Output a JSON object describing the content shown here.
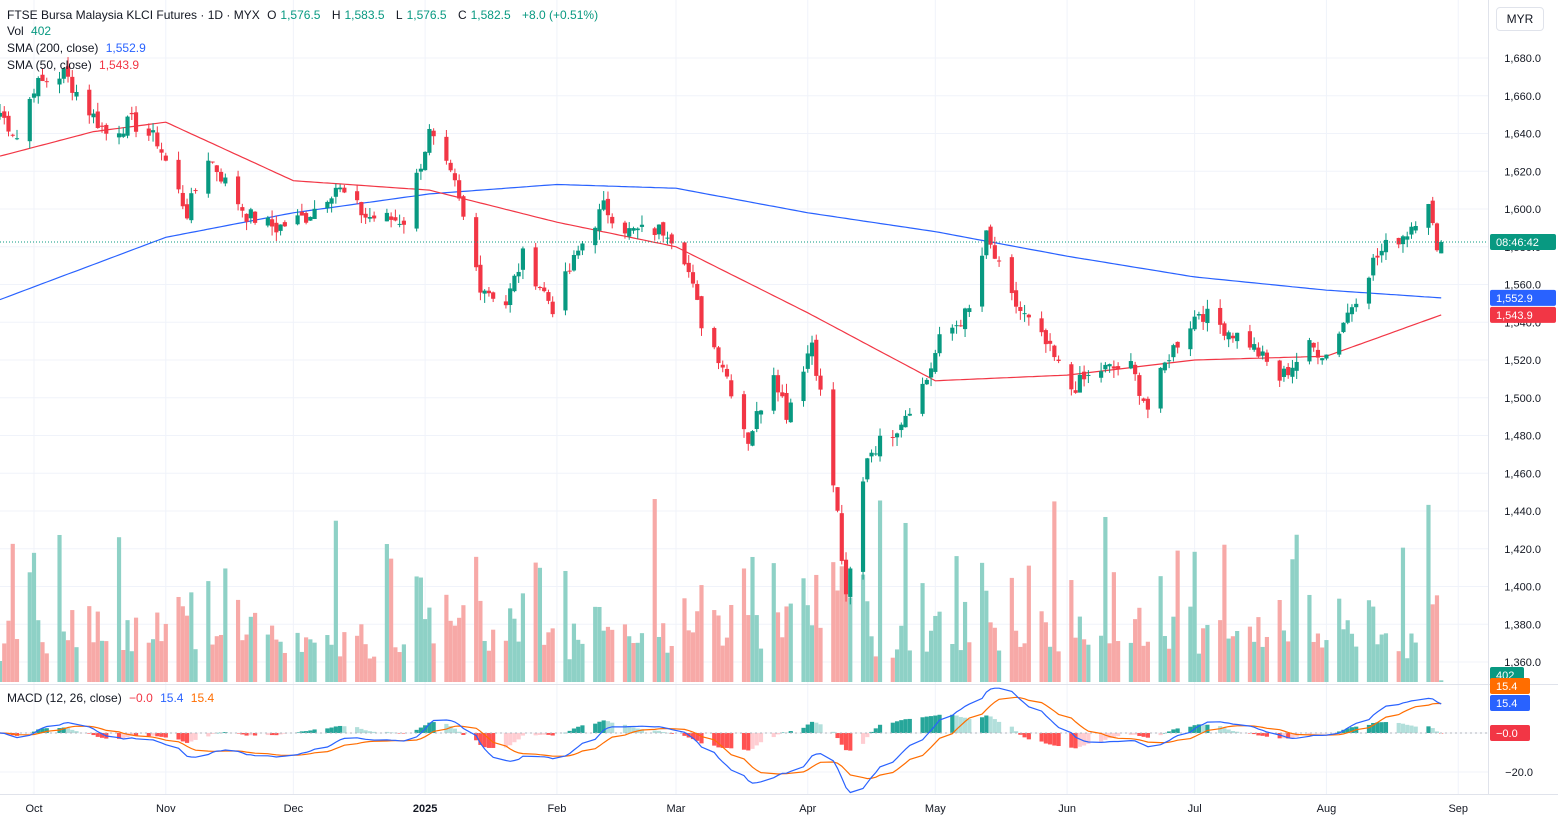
{
  "header": {
    "symbol": "FTSE Bursa Malaysia KLCI Futures · 1D · MYX",
    "open_label": "O",
    "open": "1,576.5",
    "high_label": "H",
    "high": "1,583.5",
    "low_label": "L",
    "low": "1,576.5",
    "close_label": "C",
    "close": "1,582.5",
    "change": "+8.0 (+0.51%)"
  },
  "indicators": {
    "vol_label": "Vol",
    "vol_value": "402",
    "sma200_label": "SMA (200, close)",
    "sma200_value": "1,552.9",
    "sma50_label": "SMA (50, close)",
    "sma50_value": "1,543.9",
    "macd_label": "MACD (12, 26, close)",
    "macd_hist": "−0.0",
    "macd_line": "15.4",
    "macd_signal": "15.4"
  },
  "currency_button": "MYR",
  "price_axis": {
    "ticks": [
      "1,680.0",
      "1,660.0",
      "1,640.0",
      "1,620.0",
      "1,600.0",
      "1,580.0",
      "1,560.0",
      "1,540.0",
      "1,520.0",
      "1,500.0",
      "1,480.0",
      "1,460.0",
      "1,440.0",
      "1,420.0",
      "1,400.0",
      "1,380.0",
      "1,360.0"
    ],
    "countdown_label": "08:46:42",
    "sma200_label": "1,552.9",
    "sma50_label": "1,543.9",
    "vol_label": "402"
  },
  "macd_axis": {
    "tick": "−20.0",
    "signal_label": "15.4",
    "macd_label": "15.4",
    "hist_label": "−0.0"
  },
  "time_axis": [
    "Oct",
    "Nov",
    "Dec",
    "2025",
    "Feb",
    "Mar",
    "Apr",
    "May",
    "Jun",
    "Jul",
    "Aug",
    "Sep"
  ],
  "colors": {
    "up": "#089981",
    "down": "#f23645",
    "sma200": "#2962ff",
    "sma50": "#f23645",
    "macd": "#2962ff",
    "signal": "#ff6d00",
    "vol_up": "#8ed1c6",
    "vol_down": "#f7a9a7",
    "grid": "#f0f3fa"
  },
  "chart_data": {
    "type": "candlestick",
    "title": "FTSE Bursa Malaysia KLCI Futures",
    "interval": "1D",
    "y_range": [
      1360,
      1690
    ],
    "x_range": [
      "2024-09-23",
      "2025-09-08"
    ],
    "grid": true,
    "anchors_close": [
      [
        "2024-09-23",
        1651
      ],
      [
        "2024-09-27",
        1638
      ],
      [
        "2024-10-01",
        1665
      ],
      [
        "2024-10-08",
        1672
      ],
      [
        "2024-10-14",
        1652
      ],
      [
        "2024-10-18",
        1640
      ],
      [
        "2024-10-24",
        1646
      ],
      [
        "2024-10-30",
        1636
      ],
      [
        "2024-11-06",
        1598
      ],
      [
        "2024-11-11",
        1628
      ],
      [
        "2024-11-20",
        1597
      ],
      [
        "2024-11-27",
        1590
      ],
      [
        "2024-12-04",
        1596
      ],
      [
        "2024-12-11",
        1612
      ],
      [
        "2024-12-18",
        1596
      ],
      [
        "2024-12-27",
        1594
      ],
      [
        "2025-01-02",
        1640
      ],
      [
        "2025-01-08",
        1612
      ],
      [
        "2025-01-14",
        1560
      ],
      [
        "2025-01-20",
        1550
      ],
      [
        "2025-01-24",
        1575
      ],
      [
        "2025-01-31",
        1548
      ],
      [
        "2025-02-07",
        1582
      ],
      [
        "2025-02-12",
        1601
      ],
      [
        "2025-02-18",
        1588
      ],
      [
        "2025-02-27",
        1589
      ],
      [
        "2025-03-03",
        1575
      ],
      [
        "2025-03-07",
        1540
      ],
      [
        "2025-03-12",
        1518
      ],
      [
        "2025-03-18",
        1478
      ],
      [
        "2025-03-24",
        1515
      ],
      [
        "2025-03-27",
        1492
      ],
      [
        "2025-04-02",
        1530
      ],
      [
        "2025-04-04",
        1502
      ],
      [
        "2025-04-08",
        1438
      ],
      [
        "2025-04-10",
        1392
      ],
      [
        "2025-04-15",
        1470
      ],
      [
        "2025-04-22",
        1485
      ],
      [
        "2025-04-29",
        1510
      ],
      [
        "2025-05-02",
        1530
      ],
      [
        "2025-05-09",
        1546
      ],
      [
        "2025-05-13",
        1585
      ],
      [
        "2025-05-19",
        1552
      ],
      [
        "2025-05-27",
        1528
      ],
      [
        "2025-06-02",
        1505
      ],
      [
        "2025-06-09",
        1515
      ],
      [
        "2025-06-16",
        1516
      ],
      [
        "2025-06-20",
        1494
      ],
      [
        "2025-06-25",
        1523
      ],
      [
        "2025-07-02",
        1546
      ],
      [
        "2025-07-08",
        1537
      ],
      [
        "2025-07-14",
        1529
      ],
      [
        "2025-07-21",
        1510
      ],
      [
        "2025-07-28",
        1527
      ],
      [
        "2025-08-01",
        1523
      ],
      [
        "2025-08-06",
        1545
      ],
      [
        "2025-08-12",
        1572
      ],
      [
        "2025-08-15",
        1580
      ],
      [
        "2025-08-20",
        1588
      ],
      [
        "2025-08-25",
        1606
      ],
      [
        "2025-08-27",
        1575
      ],
      [
        "2025-08-28",
        1582.5
      ]
    ],
    "sma200_anchors": [
      [
        "2024-09-23",
        1552
      ],
      [
        "2024-11-01",
        1585
      ],
      [
        "2024-12-01",
        1598
      ],
      [
        "2025-01-02",
        1608
      ],
      [
        "2025-02-01",
        1613
      ],
      [
        "2025-03-01",
        1611
      ],
      [
        "2025-04-01",
        1598
      ],
      [
        "2025-05-01",
        1588
      ],
      [
        "2025-06-01",
        1575
      ],
      [
        "2025-07-01",
        1564
      ],
      [
        "2025-08-01",
        1557
      ],
      [
        "2025-08-28",
        1552.9
      ]
    ],
    "sma50_anchors": [
      [
        "2024-09-23",
        1628
      ],
      [
        "2024-10-15",
        1641
      ],
      [
        "2024-11-01",
        1646
      ],
      [
        "2024-12-01",
        1615
      ],
      [
        "2025-01-02",
        1610
      ],
      [
        "2025-02-01",
        1593
      ],
      [
        "2025-03-01",
        1580
      ],
      [
        "2025-04-01",
        1545
      ],
      [
        "2025-05-01",
        1509
      ],
      [
        "2025-06-01",
        1512
      ],
      [
        "2025-07-01",
        1520
      ],
      [
        "2025-08-01",
        1522
      ],
      [
        "2025-08-28",
        1543.9
      ]
    ],
    "volume_last": 402,
    "macd_last": {
      "macd": 15.4,
      "signal": 15.4,
      "histogram": -0.0
    }
  }
}
